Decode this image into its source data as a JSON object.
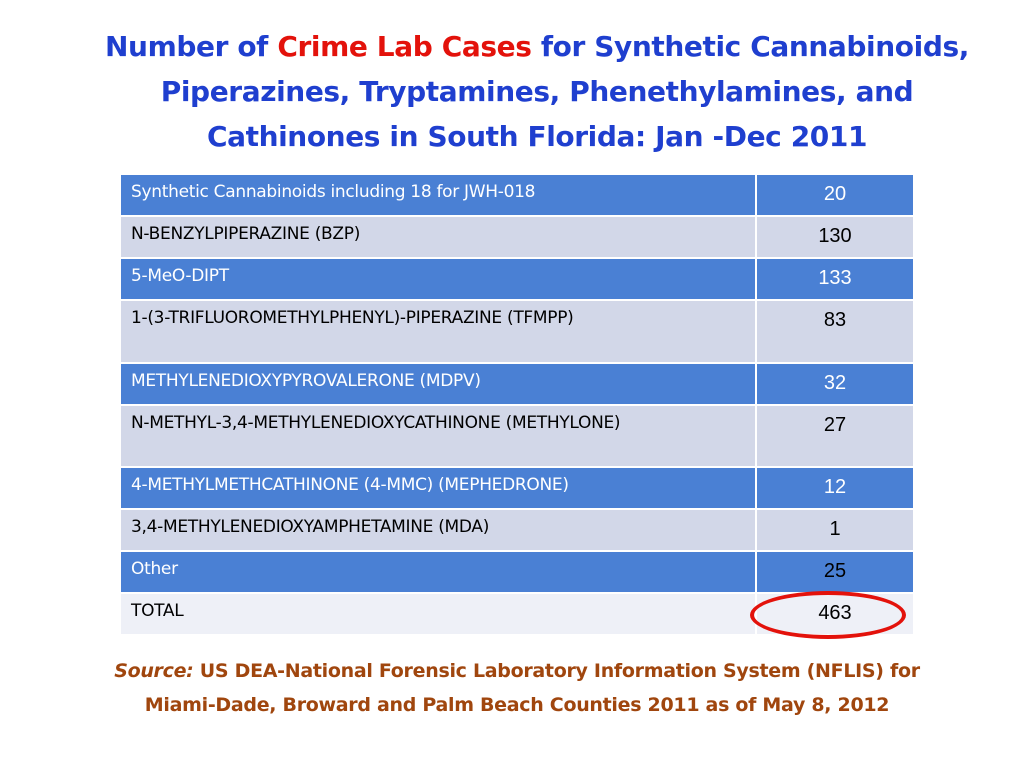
{
  "title": {
    "part1": "Number of ",
    "highlight": "Crime Lab Cases",
    "part2": " for Synthetic  Cannabinoids,",
    "line2": "Piperazines, Tryptamines, Phenethylamines,  and",
    "line3": "Cathinones in South Florida: Jan -Dec 2011"
  },
  "table": {
    "rows": [
      {
        "label": "Synthetic Cannabinoids including 18 for JWH-018",
        "value": "20"
      },
      {
        "label": "N-BENZYLPIPERAZINE (BZP)",
        "value": "130"
      },
      {
        "label": "5-MeO-DIPT",
        "value": "133"
      },
      {
        "label": "1-(3-TRIFLUOROMETHYLPHENYL)-PIPERAZINE (TFMPP)",
        "value": "83"
      },
      {
        "label": "METHYLENEDIOXYPYROVALERONE (MDPV)",
        "value": "32"
      },
      {
        "label": "N-METHYL-3,4-METHYLENEDIOXYCATHINONE (METHYLONE)",
        "value": "27"
      },
      {
        "label": "4-METHYLMETHCATHINONE (4-MMC) (MEPHEDRONE)",
        "value": "12"
      },
      {
        "label": "3,4-METHYLENEDIOXYAMPHETAMINE (MDA)",
        "value": "1"
      },
      {
        "label": "Other",
        "value": "25"
      },
      {
        "label": "TOTAL",
        "value": "463"
      }
    ]
  },
  "source": {
    "label": "Source:",
    "line1": " US DEA-National Forensic Laboratory Information System (NFLIS) for",
    "line2": "Miami-Dade, Broward and Palm Beach Counties 2011 as of May 8, 2012"
  },
  "colors": {
    "title_blue": "#1f3fcf",
    "highlight_red": "#e3120b",
    "row_dark": "#4a80d4",
    "row_light": "#d2d7e8",
    "source_brown": "#a0460e",
    "circle_red": "#e3120b"
  }
}
